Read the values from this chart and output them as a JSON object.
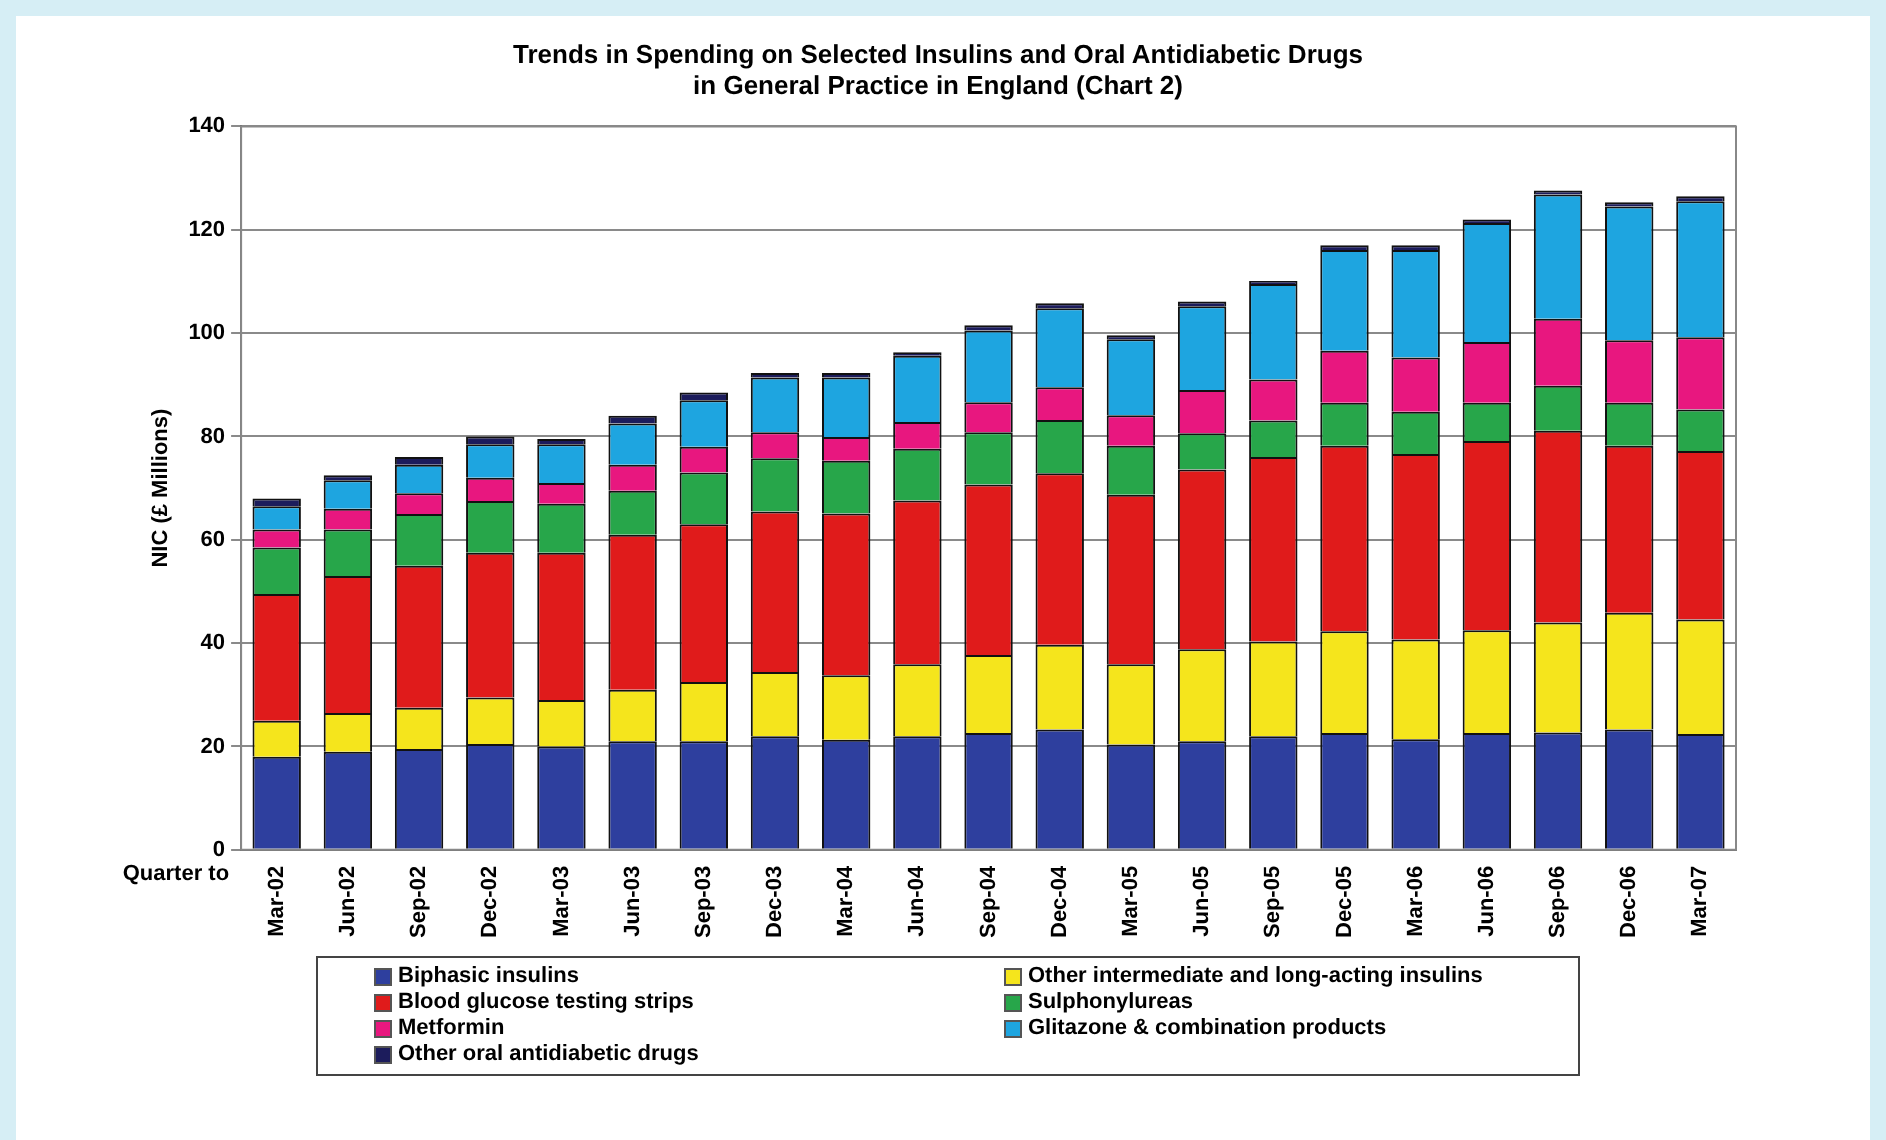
{
  "chart_data": {
    "type": "bar",
    "stacked": true,
    "title": "Trends in Spending on Selected Insulins and Oral Antidiabetic Drugs\nin General Practice in England (Chart 2)",
    "xlabel": "Quarter to",
    "ylabel": "NIC (£ Millions)",
    "categories": [
      "Mar-02",
      "Jun-02",
      "Sep-02",
      "Dec-02",
      "Mar-03",
      "Jun-03",
      "Sep-03",
      "Dec-03",
      "Mar-04",
      "Jun-04",
      "Sep-04",
      "Dec-04",
      "Mar-05",
      "Jun-05",
      "Sep-05",
      "Dec-05",
      "Mar-06",
      "Jun-06",
      "Sep-06",
      "Dec-06",
      "Mar-07"
    ],
    "series": [
      {
        "name": "Biphasic insulins",
        "color": "#2e3f9e",
        "values": [
          18,
          19,
          19.5,
          20.5,
          20,
          21,
          21,
          22.0,
          21.3,
          22.0,
          22.6,
          23.3,
          20.4,
          21.0,
          22.0,
          22.6,
          21.4,
          22.6,
          22.7,
          23.3,
          22.4
        ]
      },
      {
        "name": "Other intermediate and long-acting insulins",
        "color": "#f5e51c",
        "values": [
          7,
          7.5,
          8,
          9,
          9,
          10,
          11.5,
          12.4,
          12.5,
          13.9,
          15.1,
          16.4,
          15.5,
          17.8,
          18.3,
          19.7,
          19.3,
          19.9,
          21.3,
          22.6,
          22.2
        ]
      },
      {
        "name": "Blood glucose testing strips",
        "color": "#e01b1b",
        "values": [
          24.5,
          26.5,
          27.5,
          28,
          28.5,
          30,
          30.5,
          31.1,
          31.3,
          31.7,
          33.0,
          33.2,
          32.8,
          34.8,
          35.7,
          35.9,
          35.9,
          36.6,
          37.1,
          32.3,
          32.6
        ]
      },
      {
        "name": "Sulphonylureas",
        "color": "#27a64a",
        "values": [
          9,
          9,
          10,
          10,
          9.5,
          8.5,
          10,
          10.3,
          10.2,
          10.0,
          10.1,
          10.3,
          9.5,
          7.0,
          7.1,
          8.3,
          8.2,
          7.4,
          8.7,
          8.3,
          8.0
        ]
      },
      {
        "name": "Metformin",
        "color": "#e8177f",
        "values": [
          3.5,
          4,
          4,
          4.5,
          4,
          5,
          5,
          5.0,
          4.6,
          5.2,
          5.8,
          6.3,
          5.9,
          8.4,
          7.9,
          10.1,
          10.5,
          11.8,
          13.0,
          12.1,
          14.0
        ]
      },
      {
        "name": "Glitazone & combination products",
        "color": "#1ea5e0",
        "values": [
          4.5,
          5.5,
          5.5,
          6.5,
          7.5,
          8,
          9,
          10.6,
          11.5,
          12.8,
          13.9,
          15.3,
          14.7,
          16.2,
          18.5,
          19.5,
          20.8,
          23.0,
          24.0,
          25.9,
          26.3
        ]
      },
      {
        "name": "Other oral antidiabetic drugs",
        "color": "#1c1c5c",
        "values": [
          1.5,
          1,
          1.5,
          1.5,
          1,
          1.5,
          1.5,
          0.9,
          0.9,
          0.7,
          1.0,
          1.0,
          0.8,
          0.9,
          0.6,
          0.9,
          0.9,
          0.7,
          0.8,
          0.8,
          1.0
        ]
      }
    ],
    "ylim": [
      0,
      140
    ],
    "yticks": [
      0,
      20,
      40,
      60,
      80,
      100,
      120,
      140
    ],
    "grid": "y",
    "legend": "bottom"
  }
}
